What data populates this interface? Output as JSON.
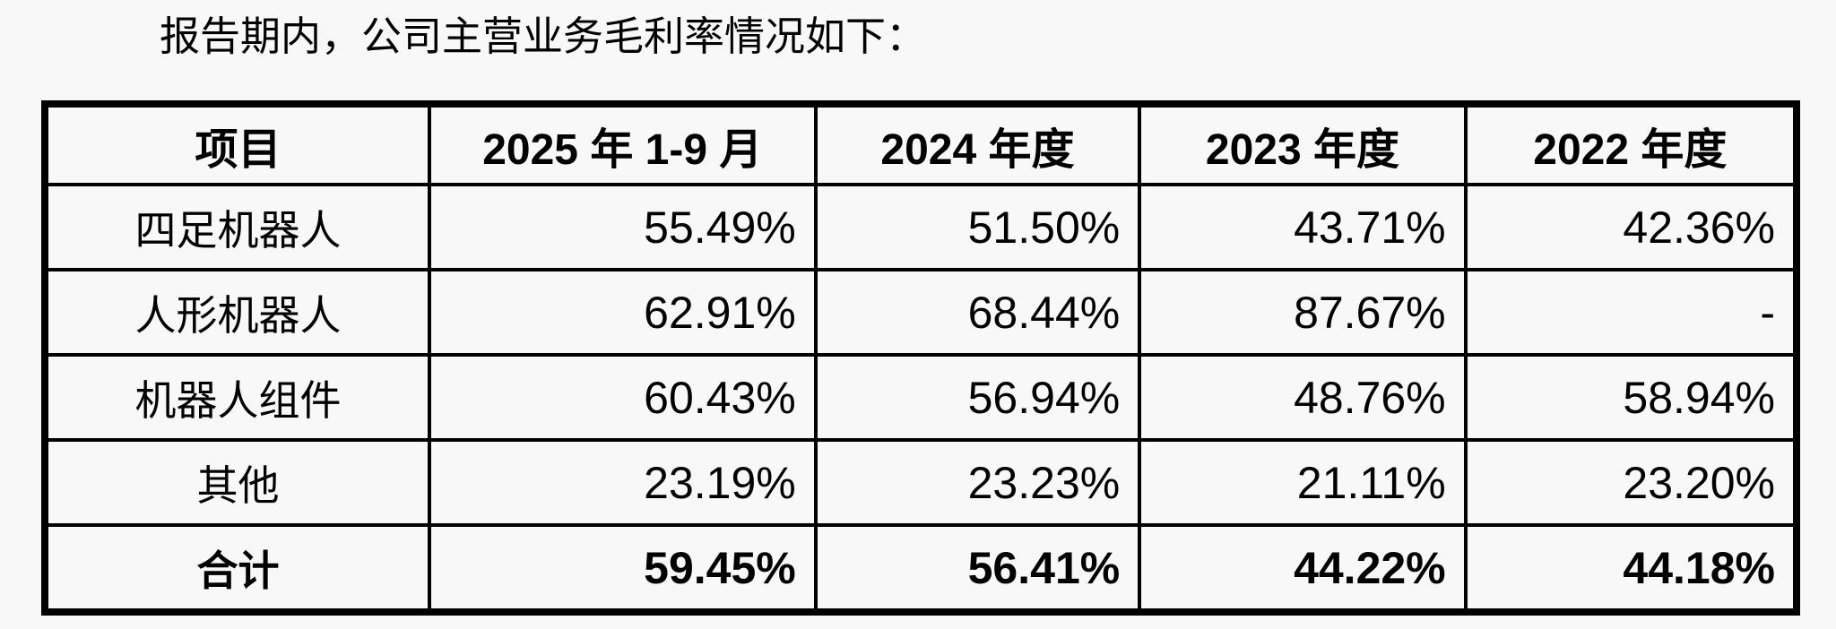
{
  "page": {
    "background_color": "#f8f8f8",
    "text_color": "#000000",
    "border_color": "#000000"
  },
  "intro": {
    "text": "报告期内，公司主营业务毛利率情况如下："
  },
  "table": {
    "columns": [
      "项目",
      "2025 年 1-9 月",
      "2024 年度",
      "2023 年度",
      "2022 年度"
    ],
    "rows": [
      {
        "label": "四足机器人",
        "values": [
          "55.49%",
          "51.50%",
          "43.71%",
          "42.36%"
        ],
        "bold": false
      },
      {
        "label": "人形机器人",
        "values": [
          "62.91%",
          "68.44%",
          "87.67%",
          "-"
        ],
        "bold": false
      },
      {
        "label": "机器人组件",
        "values": [
          "60.43%",
          "56.94%",
          "48.76%",
          "58.94%"
        ],
        "bold": false
      },
      {
        "label": "其他",
        "values": [
          "23.19%",
          "23.23%",
          "21.11%",
          "23.20%"
        ],
        "bold": false
      },
      {
        "label": "合计",
        "values": [
          "59.45%",
          "56.41%",
          "44.22%",
          "44.18%"
        ],
        "bold": true
      }
    ]
  }
}
